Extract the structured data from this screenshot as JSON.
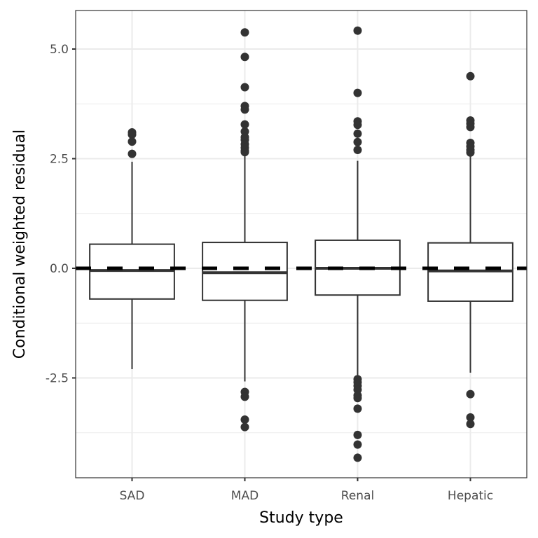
{
  "chart_data": {
    "type": "boxplot",
    "title": "",
    "xlabel": "Study type",
    "ylabel": "Conditional weighted residual",
    "categories": [
      "SAD",
      "MAD",
      "Renal",
      "Hepatic"
    ],
    "ylim": [
      -4.6,
      6.1
    ],
    "yticks": [
      5.0,
      2.5,
      0.0,
      -2.5
    ],
    "ytick_labels": [
      "5.0",
      "2.5",
      "0.0",
      "-2.5"
    ],
    "grid": true,
    "reference_line": {
      "y": 0,
      "style": "dashed",
      "color": "#000000"
    },
    "boxes": [
      {
        "category": "SAD",
        "q1": -0.7,
        "median": -0.05,
        "q3": 0.55,
        "whisker_low": -2.3,
        "whisker_high": 2.43,
        "outliers": [
          3.1,
          3.05,
          2.89,
          2.61
        ]
      },
      {
        "category": "MAD",
        "q1": -0.73,
        "median": -0.1,
        "q3": 0.59,
        "whisker_low": -2.58,
        "whisker_high": 2.6,
        "outliers": [
          5.38,
          4.82,
          4.13,
          3.7,
          3.62,
          3.28,
          3.12,
          2.99,
          2.93,
          2.83,
          2.75,
          2.68,
          2.65,
          -2.82,
          -2.93,
          -3.45,
          -3.62
        ]
      },
      {
        "category": "Renal",
        "q1": -0.61,
        "median": 0.0,
        "q3": 0.64,
        "whisker_low": -2.45,
        "whisker_high": 2.45,
        "outliers": [
          5.42,
          4.0,
          3.35,
          3.27,
          3.07,
          2.88,
          2.7,
          -2.53,
          -2.6,
          -2.68,
          -2.77,
          -2.9,
          -2.96,
          -3.2,
          -3.8,
          -4.02,
          -4.32
        ]
      },
      {
        "category": "Hepatic",
        "q1": -0.75,
        "median": -0.06,
        "q3": 0.58,
        "whisker_low": -2.38,
        "whisker_high": 2.57,
        "outliers": [
          4.38,
          3.37,
          3.3,
          3.22,
          2.86,
          2.78,
          2.7,
          2.64,
          -2.87,
          -3.4,
          -3.55
        ]
      }
    ],
    "colors": {
      "box_stroke": "#333333",
      "outlier": "#333333",
      "grid": "#ebebeb",
      "panel_border": "#333333"
    }
  }
}
